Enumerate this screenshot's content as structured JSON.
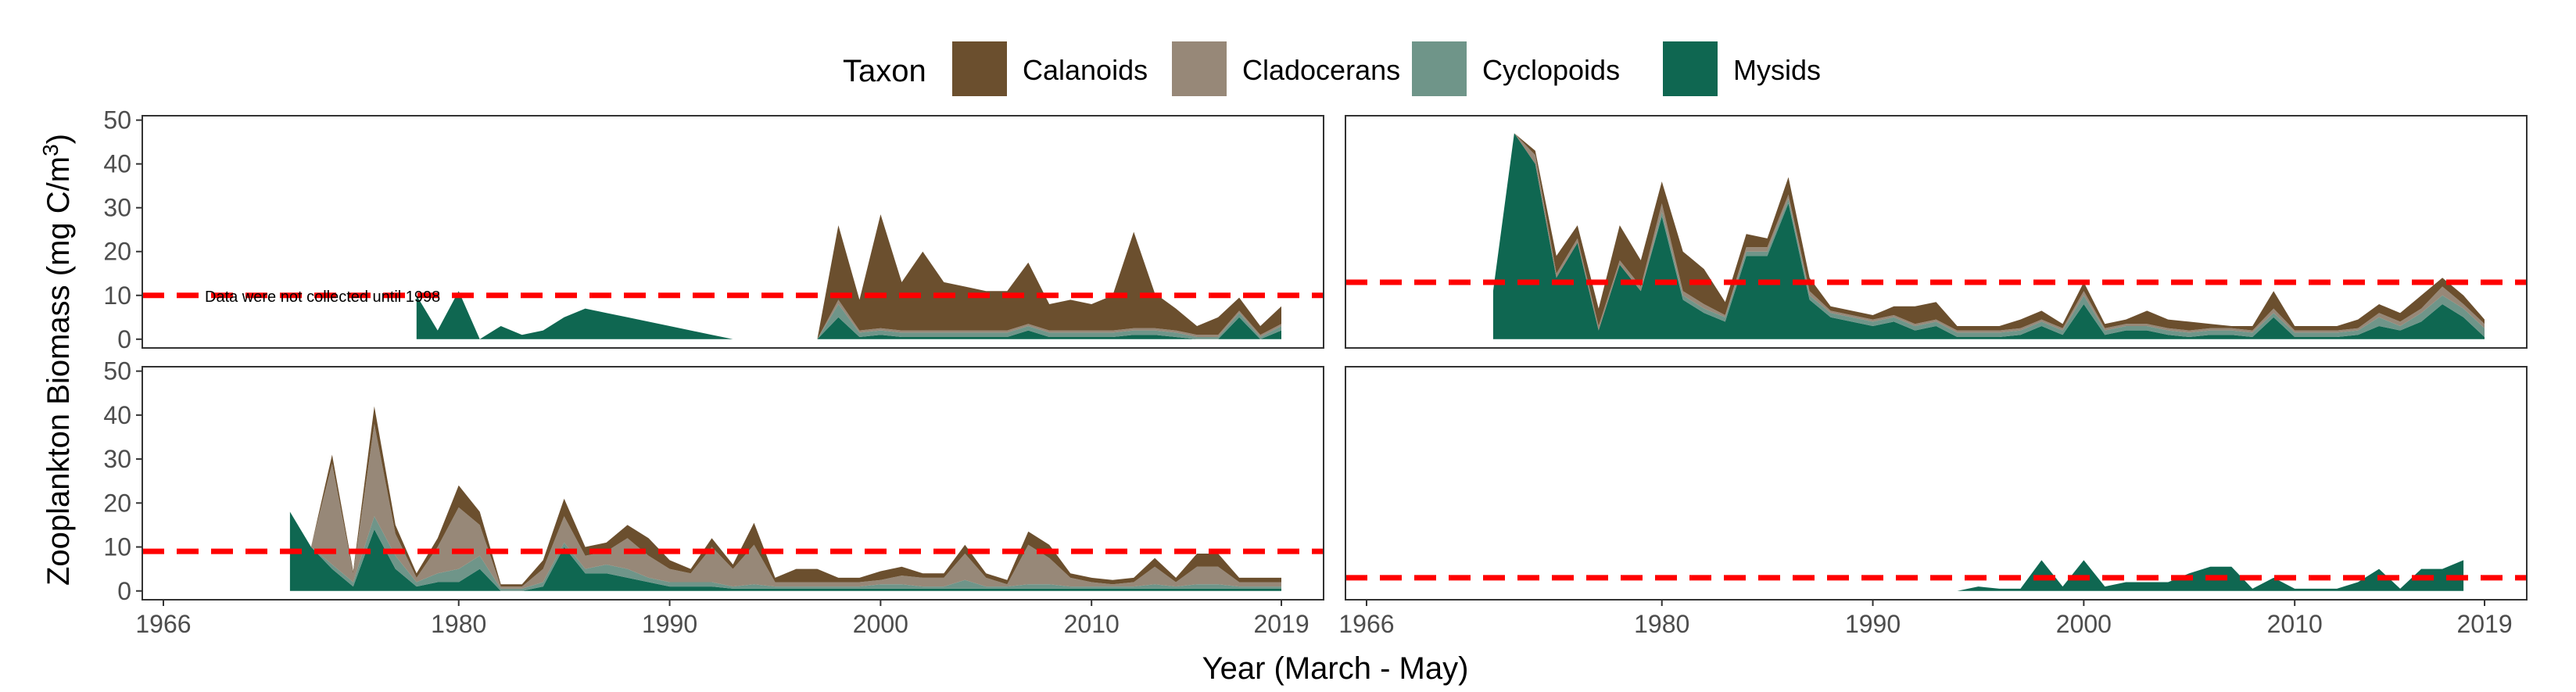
{
  "chart_data": {
    "type": "area",
    "ylabel": "Zooplankton Biomass (mg C/m",
    "ylabel_superscript": "3",
    "ylabel_suffix": ")",
    "xlabel": "Year (March - May)",
    "x_ticks": [
      1966,
      1980,
      1990,
      2000,
      2010,
      2019
    ],
    "y_ticks": [
      0,
      10,
      20,
      30,
      40,
      50
    ],
    "xlim": [
      1965,
      2021
    ],
    "ylim": [
      -2,
      51
    ],
    "stacked": true,
    "legend": {
      "title": "Taxon",
      "placement": "top",
      "items": [
        {
          "label": "Calanoids",
          "color": "#6B4F2E"
        },
        {
          "label": "Cladocerans",
          "color": "#978878"
        },
        {
          "label": "Cyclopoids",
          "color": "#6F9589"
        },
        {
          "label": "Mysids",
          "color": "#0F6751"
        }
      ]
    },
    "reference_line_color": "#FF0000",
    "panels": [
      {
        "position": "top-left",
        "reference_line": 10,
        "annotation": "Data were not collected until 1998",
        "years": [
          1978,
          1979,
          1980,
          1981,
          1982,
          1983,
          1984,
          1985,
          1986,
          1987,
          1988,
          1989,
          1990,
          1991,
          1992,
          1993,
          1994,
          1995,
          1996,
          1997,
          1998,
          1999,
          2000,
          2001,
          2002,
          2003,
          2004,
          2005,
          2006,
          2007,
          2008,
          2009,
          2010,
          2011,
          2012,
          2013,
          2014,
          2015,
          2016,
          2017,
          2018,
          2019
        ],
        "series": [
          {
            "name": "Mysids",
            "values": [
              10,
              2,
              11,
              0,
              3,
              1,
              2,
              5,
              7,
              6,
              5,
              4,
              3,
              2,
              1,
              0,
              0,
              0,
              0,
              0,
              5,
              0.5,
              1,
              0.5,
              0.5,
              0.5,
              0.5,
              0.5,
              0.5,
              2,
              0.5,
              0.5,
              0.5,
              0.5,
              1,
              1,
              0.5,
              0,
              0,
              5,
              0,
              2
            ]
          },
          {
            "name": "Cyclopoids",
            "values": [
              0,
              0,
              0,
              0,
              0,
              0,
              0,
              0,
              0,
              0,
              0,
              0,
              0,
              0,
              0,
              0,
              0,
              0,
              0,
              0,
              3,
              1,
              1,
              1,
              1,
              1,
              1,
              1,
              1,
              1,
              1,
              1,
              1,
              1,
              1,
              1,
              1,
              0.5,
              0.5,
              1,
              0.5,
              1
            ]
          },
          {
            "name": "Cladocerans",
            "values": [
              0,
              0,
              0,
              0,
              0,
              0,
              0,
              0,
              0,
              0,
              0,
              0,
              0,
              0,
              0,
              0,
              0,
              0,
              0,
              0,
              1,
              0.5,
              0.5,
              0.5,
              0.5,
              0.5,
              0.5,
              0.5,
              0.5,
              0.5,
              0.5,
              0.5,
              0.5,
              0.5,
              0.5,
              0.5,
              0.5,
              0.5,
              0.5,
              0.5,
              0.5,
              0.5
            ]
          },
          {
            "name": "Calanoids",
            "values": [
              0,
              0,
              0,
              0,
              0,
              0,
              0,
              0,
              0,
              0,
              0,
              0,
              0,
              0,
              0,
              0,
              0,
              0,
              0,
              0,
              17,
              7,
              26,
              11,
              18,
              11,
              10,
              9,
              9,
              14,
              6,
              7,
              6,
              8,
              22,
              8,
              5,
              2,
              4,
              3,
              2,
              4
            ]
          }
        ]
      },
      {
        "position": "top-right",
        "reference_line": 13,
        "annotation": "",
        "years": [
          1972,
          1973,
          1974,
          1975,
          1976,
          1977,
          1978,
          1979,
          1980,
          1981,
          1982,
          1983,
          1984,
          1985,
          1986,
          1987,
          1988,
          1989,
          1990,
          1991,
          1992,
          1993,
          1994,
          1995,
          1996,
          1997,
          1998,
          1999,
          2000,
          2001,
          2002,
          2003,
          2004,
          2005,
          2006,
          2007,
          2008,
          2009,
          2010,
          2011,
          2012,
          2013,
          2014,
          2015,
          2016,
          2017,
          2018,
          2019
        ],
        "series": [
          {
            "name": "Mysids",
            "values": [
              11,
              47,
              40,
              14,
              22,
              2,
              17,
              11,
              28,
              9,
              6,
              4,
              19,
              19,
              31,
              9,
              5,
              4,
              3,
              4,
              2,
              3,
              0.5,
              0.5,
              0.5,
              1,
              3,
              1,
              8,
              1,
              2,
              2,
              1,
              0.5,
              1,
              1,
              0.5,
              5,
              0.5,
              0.5,
              0.5,
              1,
              3,
              2,
              4,
              8,
              5,
              0.5
            ]
          },
          {
            "name": "Cyclopoids",
            "values": [
              0,
              0,
              0,
              0,
              0,
              0,
              0,
              0,
              1,
              1,
              1,
              1,
              1,
              1,
              1,
              1,
              1,
              1,
              1,
              1,
              1,
              1,
              1,
              1,
              1,
              1,
              1,
              1,
              2,
              1,
              1,
              1,
              1,
              1,
              1,
              1,
              1,
              1,
              1,
              1,
              1,
              1,
              2,
              1,
              2,
              2,
              2,
              2
            ]
          },
          {
            "name": "Cladocerans",
            "values": [
              0,
              0,
              2,
              1,
              1,
              1,
              1,
              1,
              2,
              1,
              1,
              0.5,
              1,
              1,
              1,
              1,
              0.5,
              0.5,
              0.5,
              0.5,
              0.5,
              0.5,
              0.5,
              0.5,
              0.5,
              0.5,
              0.5,
              0.5,
              1,
              0.5,
              0.5,
              0.5,
              0.5,
              0.5,
              0.5,
              0.5,
              0.5,
              1,
              0.5,
              0.5,
              0.5,
              0.5,
              1,
              1,
              1,
              2,
              1,
              1
            ]
          },
          {
            "name": "Calanoids",
            "values": [
              0,
              0,
              1,
              4,
              3,
              4,
              8,
              6,
              5,
              9,
              8,
              3,
              3,
              2,
              4,
              3,
              1,
              1,
              1,
              2,
              4,
              4,
              1,
              1,
              1,
              2,
              2,
              1,
              2,
              1,
              1,
              3,
              2,
              2,
              1,
              0.5,
              1,
              4,
              1,
              1,
              1,
              2,
              2,
              2,
              3,
              2,
              2,
              1
            ]
          }
        ]
      },
      {
        "position": "bottom-left",
        "reference_line": 9,
        "annotation": "",
        "years": [
          1972,
          1973,
          1974,
          1975,
          1976,
          1977,
          1978,
          1979,
          1980,
          1981,
          1982,
          1983,
          1984,
          1985,
          1986,
          1987,
          1988,
          1989,
          1990,
          1991,
          1992,
          1993,
          1994,
          1995,
          1996,
          1997,
          1998,
          1999,
          2000,
          2001,
          2002,
          2003,
          2004,
          2005,
          2006,
          2007,
          2008,
          2009,
          2010,
          2011,
          2012,
          2013,
          2014,
          2015,
          2016,
          2017,
          2018,
          2019
        ],
        "series": [
          {
            "name": "Mysids",
            "values": [
              18,
              10,
              5,
              1,
              14,
              5,
              1,
              2,
              2,
              5,
              0,
              0,
              1,
              10,
              4,
              4,
              3,
              2,
              1,
              1,
              1,
              0.5,
              0.5,
              0.5,
              0.5,
              0.5,
              0.5,
              0.5,
              0.5,
              0.5,
              0.5,
              0.5,
              0.5,
              0.5,
              0.5,
              0.5,
              0.5,
              0.5,
              0.5,
              0.5,
              0.5,
              0.5,
              0.5,
              0.5,
              0.5,
              0.5,
              0.5,
              0.5
            ]
          },
          {
            "name": "Cyclopoids",
            "values": [
              0,
              0,
              1,
              1,
              3,
              3,
              1,
              2,
              3,
              3,
              0.5,
              0.5,
              1,
              1,
              1,
              2,
              2,
              1,
              1,
              1,
              1,
              0.5,
              1,
              0.5,
              0.5,
              0.5,
              0.5,
              0.5,
              1,
              1,
              0.5,
              0.5,
              2,
              0.5,
              0.5,
              1,
              1,
              0.5,
              0.5,
              0.5,
              0.5,
              1,
              0.5,
              1,
              1,
              0.5,
              0.5,
              0.5
            ]
          },
          {
            "name": "Cladocerans",
            "values": [
              0,
              0,
              23,
              2,
              21,
              5,
              1,
              6,
              14,
              7,
              0.5,
              0.5,
              3,
              6,
              3,
              3,
              7,
              5,
              3,
              2,
              8,
              4,
              9,
              1,
              1,
              1,
              1,
              1,
              1,
              2,
              2,
              2,
              6,
              2,
              0.5,
              9,
              6,
              2,
              1,
              0.5,
              1,
              4,
              1,
              4,
              4,
              1,
              1,
              1
            ]
          },
          {
            "name": "Calanoids",
            "values": [
              0,
              0,
              2,
              0.5,
              4,
              2,
              1,
              2,
              5,
              3,
              0.5,
              0.5,
              2,
              4,
              2,
              2,
              3,
              4,
              2,
              1,
              2,
              1,
              5,
              1,
              3,
              3,
              1,
              1,
              2,
              2,
              1,
              1,
              2,
              1,
              1,
              3,
              3,
              1,
              1,
              1,
              1,
              2,
              1,
              3,
              3,
              1,
              1,
              1
            ]
          }
        ]
      },
      {
        "position": "bottom-right",
        "reference_line": 3,
        "annotation": "",
        "years": [
          1994,
          1995,
          1996,
          1997,
          1998,
          1999,
          2000,
          2001,
          2002,
          2003,
          2004,
          2005,
          2006,
          2007,
          2008,
          2009,
          2010,
          2011,
          2012,
          2013,
          2014,
          2015,
          2016,
          2017,
          2018
        ],
        "series": [
          {
            "name": "Mysids",
            "values": [
              0,
              1,
              0.5,
              0.5,
              7,
              1,
              7,
              1,
              2,
              2,
              2,
              4,
              5.5,
              5.5,
              0.5,
              3,
              0.5,
              0.5,
              0.5,
              2,
              5,
              0.5,
              5,
              5,
              7
            ]
          },
          {
            "name": "Cyclopoids",
            "values": [
              0,
              0,
              0,
              0,
              0,
              0,
              0,
              0,
              0,
              0,
              0,
              0,
              0,
              0,
              0,
              0,
              0,
              0,
              0,
              0,
              0,
              0,
              0,
              0,
              0
            ]
          },
          {
            "name": "Cladocerans",
            "values": [
              0,
              0,
              0,
              0,
              0,
              0,
              0,
              0,
              0,
              0,
              0,
              0,
              0,
              0,
              0,
              0,
              0,
              0,
              0,
              0,
              0,
              0,
              0,
              0,
              0
            ]
          },
          {
            "name": "Calanoids",
            "values": [
              0,
              0,
              0,
              0,
              0,
              0,
              0,
              0,
              0,
              0,
              0,
              0,
              0,
              0,
              0,
              0,
              0,
              0,
              0,
              0,
              0,
              0,
              0,
              0,
              0
            ]
          }
        ]
      }
    ]
  }
}
